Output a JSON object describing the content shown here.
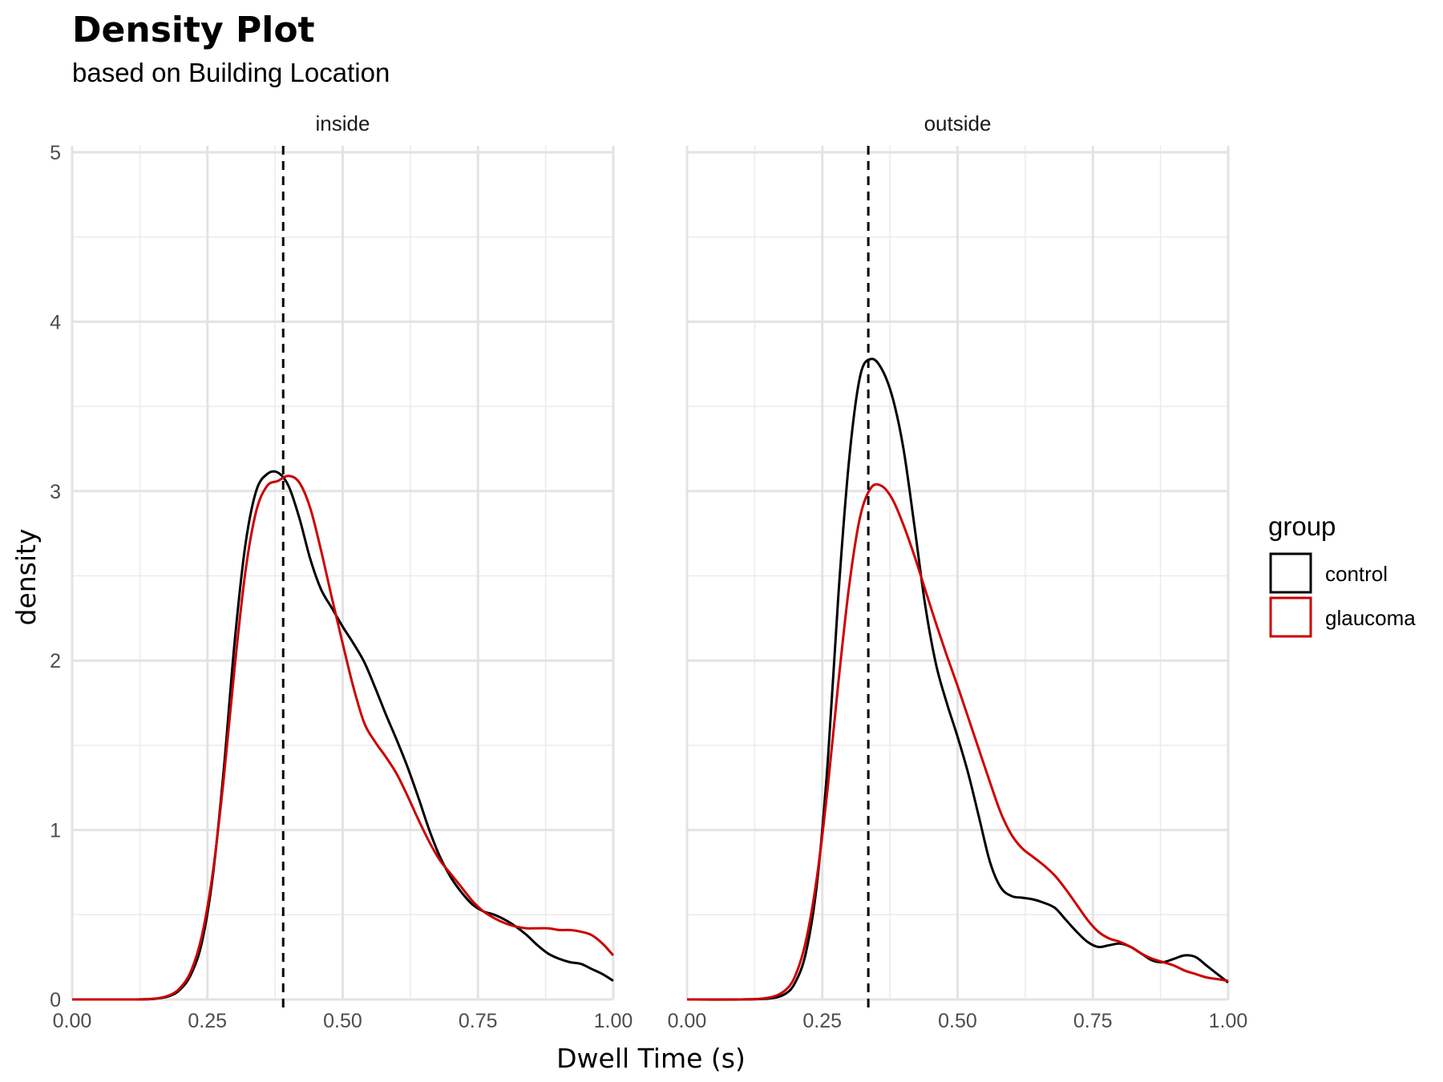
{
  "chart_data": {
    "type": "area",
    "title": "Density Plot",
    "subtitle": "based on Building Location",
    "xlabel": "Dwell Time (s)",
    "ylabel": "density",
    "xlim": [
      0,
      1
    ],
    "ylim": [
      0,
      5
    ],
    "x_ticks": [
      "0.00",
      "0.25",
      "0.50",
      "0.75",
      "1.00"
    ],
    "x_tick_values": [
      0,
      0.25,
      0.5,
      0.75,
      1.0
    ],
    "y_ticks": [
      "0",
      "1",
      "2",
      "3",
      "4",
      "5"
    ],
    "y_tick_values": [
      0,
      1,
      2,
      3,
      4,
      5
    ],
    "grid": true,
    "legend": {
      "title": "group",
      "position": "right",
      "entries": [
        {
          "label": "control",
          "color": "#000000"
        },
        {
          "label": "glaucoma",
          "color": "#cc0000"
        }
      ]
    },
    "facets": [
      {
        "label": "inside",
        "mean_line_x": 0.39,
        "series": [
          {
            "name": "control",
            "color": "#000000",
            "x": [
              0,
              0.1,
              0.15,
              0.18,
              0.2,
              0.22,
              0.24,
              0.26,
              0.28,
              0.3,
              0.32,
              0.34,
              0.36,
              0.38,
              0.4,
              0.42,
              0.44,
              0.46,
              0.48,
              0.5,
              0.52,
              0.54,
              0.56,
              0.58,
              0.6,
              0.62,
              0.64,
              0.66,
              0.68,
              0.7,
              0.72,
              0.74,
              0.76,
              0.78,
              0.8,
              0.82,
              0.84,
              0.86,
              0.88,
              0.9,
              0.92,
              0.94,
              0.96,
              0.98,
              1.0
            ],
            "y": [
              0,
              0,
              0.003,
              0.02,
              0.06,
              0.15,
              0.34,
              0.73,
              1.35,
              2.1,
              2.68,
              3.0,
              3.1,
              3.11,
              3.03,
              2.84,
              2.6,
              2.42,
              2.31,
              2.2,
              2.1,
              1.99,
              1.84,
              1.68,
              1.53,
              1.37,
              1.19,
              1.0,
              0.84,
              0.72,
              0.63,
              0.56,
              0.52,
              0.5,
              0.47,
              0.43,
              0.38,
              0.32,
              0.27,
              0.24,
              0.22,
              0.21,
              0.18,
              0.15,
              0.11
            ]
          },
          {
            "name": "glaucoma",
            "color": "#cc0000",
            "x": [
              0,
              0.1,
              0.15,
              0.18,
              0.2,
              0.22,
              0.24,
              0.26,
              0.28,
              0.3,
              0.32,
              0.34,
              0.36,
              0.38,
              0.4,
              0.42,
              0.44,
              0.46,
              0.48,
              0.5,
              0.52,
              0.54,
              0.56,
              0.58,
              0.6,
              0.62,
              0.64,
              0.66,
              0.68,
              0.7,
              0.72,
              0.74,
              0.76,
              0.78,
              0.8,
              0.82,
              0.84,
              0.86,
              0.88,
              0.9,
              0.92,
              0.94,
              0.96,
              0.98,
              1.0
            ],
            "y": [
              0,
              0,
              0.004,
              0.025,
              0.07,
              0.17,
              0.38,
              0.75,
              1.3,
              1.95,
              2.52,
              2.88,
              3.03,
              3.06,
              3.09,
              3.05,
              2.9,
              2.65,
              2.37,
              2.1,
              1.84,
              1.63,
              1.52,
              1.43,
              1.33,
              1.2,
              1.06,
              0.93,
              0.82,
              0.74,
              0.66,
              0.58,
              0.52,
              0.48,
              0.45,
              0.43,
              0.42,
              0.42,
              0.42,
              0.41,
              0.41,
              0.4,
              0.38,
              0.33,
              0.26
            ]
          }
        ]
      },
      {
        "label": "outside",
        "mean_line_x": 0.335,
        "series": [
          {
            "name": "control",
            "color": "#000000",
            "x": [
              0,
              0.1,
              0.15,
              0.18,
              0.2,
              0.22,
              0.24,
              0.26,
              0.28,
              0.3,
              0.32,
              0.34,
              0.36,
              0.38,
              0.4,
              0.42,
              0.44,
              0.46,
              0.48,
              0.5,
              0.52,
              0.54,
              0.56,
              0.58,
              0.6,
              0.62,
              0.64,
              0.66,
              0.68,
              0.7,
              0.72,
              0.74,
              0.76,
              0.78,
              0.8,
              0.82,
              0.84,
              0.86,
              0.88,
              0.9,
              0.92,
              0.94,
              0.96,
              0.98,
              1.0
            ],
            "y": [
              0,
              0,
              0.005,
              0.03,
              0.1,
              0.28,
              0.68,
              1.4,
              2.4,
              3.2,
              3.68,
              3.78,
              3.72,
              3.55,
              3.25,
              2.8,
              2.33,
              1.98,
              1.75,
              1.55,
              1.33,
              1.07,
              0.81,
              0.66,
              0.61,
              0.6,
              0.59,
              0.57,
              0.54,
              0.47,
              0.4,
              0.34,
              0.31,
              0.32,
              0.33,
              0.31,
              0.27,
              0.23,
              0.22,
              0.24,
              0.26,
              0.25,
              0.2,
              0.15,
              0.1
            ]
          },
          {
            "name": "glaucoma",
            "color": "#cc0000",
            "x": [
              0,
              0.1,
              0.15,
              0.18,
              0.2,
              0.22,
              0.24,
              0.26,
              0.28,
              0.3,
              0.32,
              0.34,
              0.36,
              0.38,
              0.4,
              0.42,
              0.44,
              0.46,
              0.48,
              0.5,
              0.52,
              0.54,
              0.56,
              0.58,
              0.6,
              0.62,
              0.64,
              0.66,
              0.68,
              0.7,
              0.72,
              0.74,
              0.76,
              0.78,
              0.8,
              0.82,
              0.84,
              0.86,
              0.88,
              0.9,
              0.92,
              0.94,
              0.96,
              0.98,
              1.0
            ],
            "y": [
              0,
              0,
              0.01,
              0.05,
              0.14,
              0.35,
              0.72,
              1.25,
              1.88,
              2.45,
              2.85,
              3.02,
              3.03,
              2.95,
              2.8,
              2.62,
              2.42,
              2.22,
              2.03,
              1.85,
              1.66,
              1.47,
              1.28,
              1.1,
              0.97,
              0.89,
              0.84,
              0.79,
              0.73,
              0.65,
              0.56,
              0.47,
              0.4,
              0.36,
              0.34,
              0.31,
              0.27,
              0.24,
              0.22,
              0.2,
              0.17,
              0.15,
              0.13,
              0.12,
              0.11
            ]
          }
        ]
      }
    ]
  }
}
